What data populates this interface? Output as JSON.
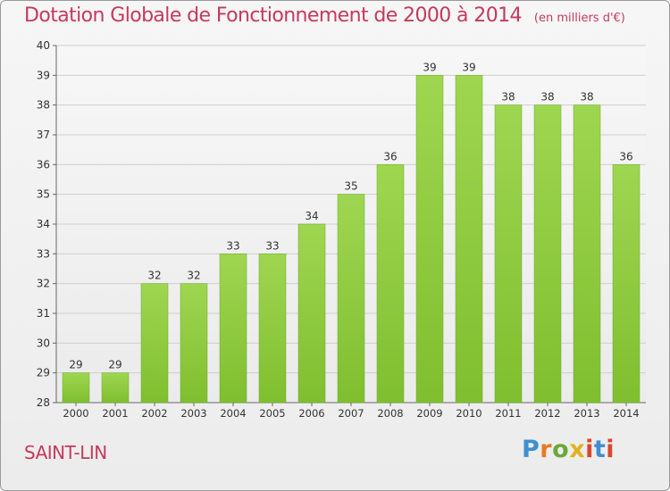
{
  "header": {
    "title": "Dotation Globale de Fonctionnement de 2000 à 2014",
    "unit_note": "(en milliers d'€)"
  },
  "footer": {
    "commune": "SAINT-LIN",
    "logo_text": "Proxiti"
  },
  "chart_data": {
    "type": "bar",
    "title": "Dotation Globale de Fonctionnement de 2000 à 2014",
    "subtitle": "(en milliers d'€)",
    "xlabel": "",
    "ylabel": "",
    "categories": [
      "2000",
      "2001",
      "2002",
      "2003",
      "2004",
      "2005",
      "2006",
      "2007",
      "2008",
      "2009",
      "2010",
      "2011",
      "2012",
      "2013",
      "2014"
    ],
    "values": [
      29,
      29,
      32,
      32,
      33,
      33,
      34,
      35,
      36,
      39,
      39,
      38,
      38,
      38,
      36
    ],
    "ylim": [
      28,
      40
    ],
    "yticks": [
      28,
      29,
      30,
      31,
      32,
      33,
      34,
      35,
      36,
      37,
      38,
      39,
      40
    ],
    "grid": true,
    "colors": {
      "bar": "#7fbf2f",
      "bar_light": "#9fd651",
      "grid": "#cfcfcf",
      "axis_text": "#333333",
      "title": "#c53a5c"
    }
  }
}
